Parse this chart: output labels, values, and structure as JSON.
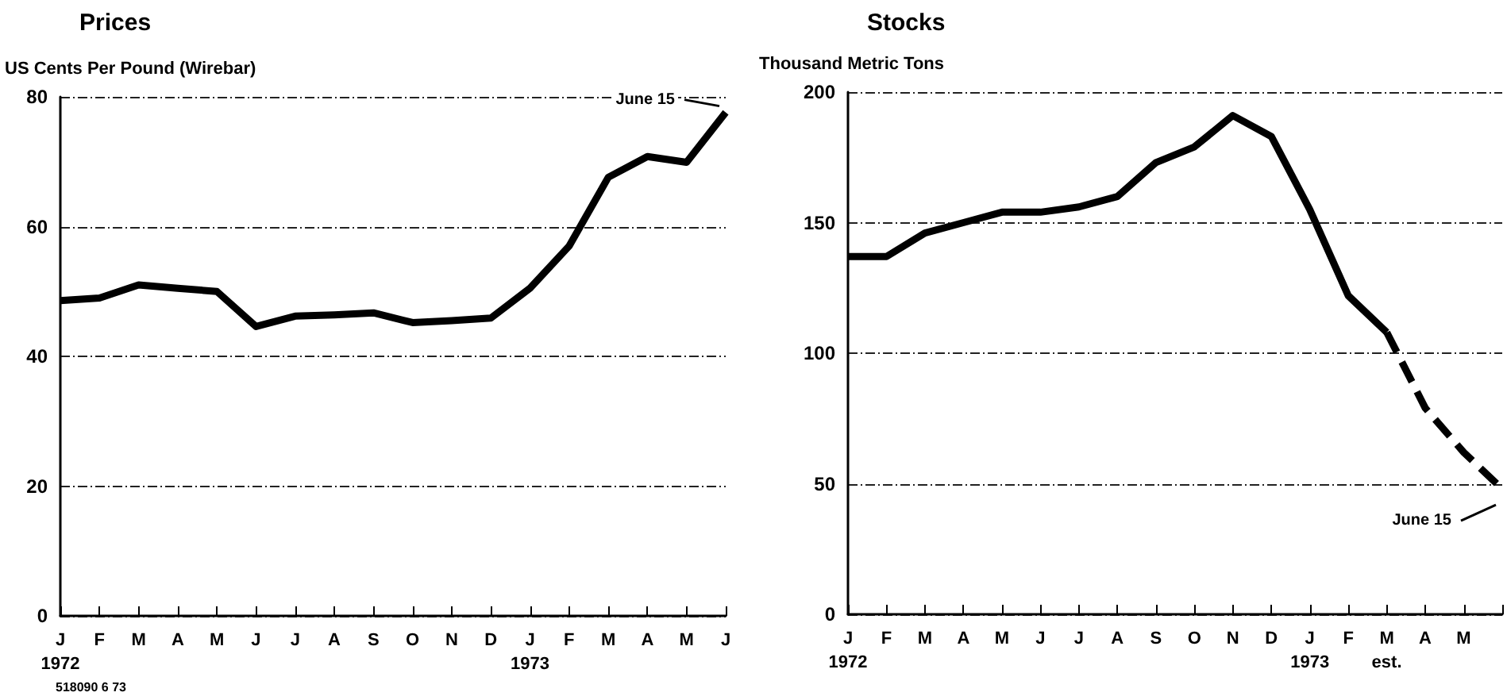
{
  "chart_data": [
    {
      "type": "line",
      "title": "Prices",
      "ylabel": "US Cents Per Pound (Wirebar)",
      "categories": [
        "J\n1972",
        "F",
        "M",
        "A",
        "M",
        "J",
        "J",
        "A",
        "S",
        "O",
        "N",
        "D",
        "J\n1973",
        "F",
        "M",
        "A",
        "M",
        "J"
      ],
      "series": [
        {
          "color": "#000000",
          "line_style": "solid",
          "values": [
            48.6,
            49,
            51,
            50.5,
            50,
            44.6,
            46.2,
            46.4,
            46.7,
            45.2,
            45.5,
            45.9,
            50.5,
            57,
            67.6,
            70.8,
            69.9,
            77.6
          ]
        }
      ],
      "ylim": [
        0,
        80
      ],
      "yticks": [
        0,
        20,
        40,
        60,
        80
      ],
      "grid": "y",
      "marker": "none",
      "annotations": [
        "June 15",
        "518090 6 73"
      ]
    },
    {
      "type": "line",
      "title": "Stocks",
      "ylabel": "Thousand Metric Tons",
      "categories": [
        "J\n1972",
        "F",
        "M",
        "A",
        "M",
        "J",
        "J",
        "A",
        "S",
        "O",
        "N",
        "D",
        "J\n1973",
        "F",
        "M\nest.",
        "A",
        "M",
        null
      ],
      "series": [
        {
          "color": "#000000",
          "line_style": "solid",
          "values": [
            137,
            137,
            146,
            150,
            154,
            154,
            156,
            160,
            173,
            179,
            191,
            183,
            155,
            122,
            108,
            null,
            null,
            null
          ]
        },
        {
          "color": "#000000",
          "line_style": "dashed",
          "values": [
            null,
            null,
            null,
            null,
            null,
            null,
            null,
            null,
            null,
            null,
            null,
            null,
            null,
            null,
            108,
            79,
            62,
            48
          ]
        }
      ],
      "ylim": [
        0,
        200
      ],
      "yticks": [
        0,
        50,
        100,
        150,
        200
      ],
      "grid": "y",
      "marker": "none",
      "annotations": [
        "June 15"
      ]
    }
  ]
}
